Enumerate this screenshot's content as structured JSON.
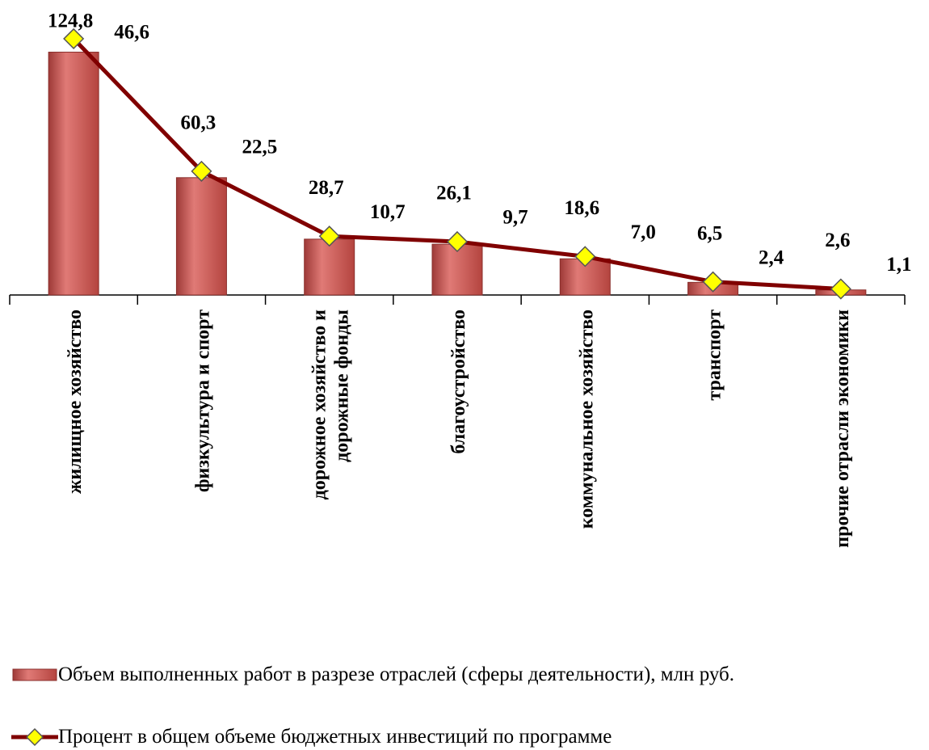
{
  "chart_data": {
    "type": "bar-line",
    "categories": [
      "жилищное хозяйство",
      "физкультура и спорт",
      "дорожное хозяйство и дорожные фонды",
      "благоустройство",
      "коммунальное хозяйство",
      "транспорт",
      "прочие отрасли экономики"
    ],
    "series": [
      {
        "name": "Объем выполненных работ в разрезе отраслей (сферы деятельности), млн руб.",
        "type": "bar",
        "color": "#c0504d",
        "values": [
          124.8,
          60.3,
          28.7,
          26.1,
          18.6,
          6.5,
          2.6
        ],
        "value_labels": [
          "124,8",
          "60,3",
          "28,7",
          "26,1",
          "18,6",
          "6,5",
          "2,6"
        ]
      },
      {
        "name": "Процент в общем объеме бюджетных инвестиций по программе",
        "type": "line",
        "axis": "y2",
        "color": "#800000",
        "marker_color": "#ffff00",
        "values": [
          46.6,
          22.5,
          10.7,
          9.7,
          7.0,
          2.4,
          1.1
        ],
        "value_labels": [
          "46,6",
          "22,5",
          "10,7",
          "9,7",
          "7,0",
          "2,4",
          "1,1"
        ]
      }
    ],
    "ylim": [
      0,
      130
    ],
    "y2lim": [
      0,
      46
    ]
  }
}
